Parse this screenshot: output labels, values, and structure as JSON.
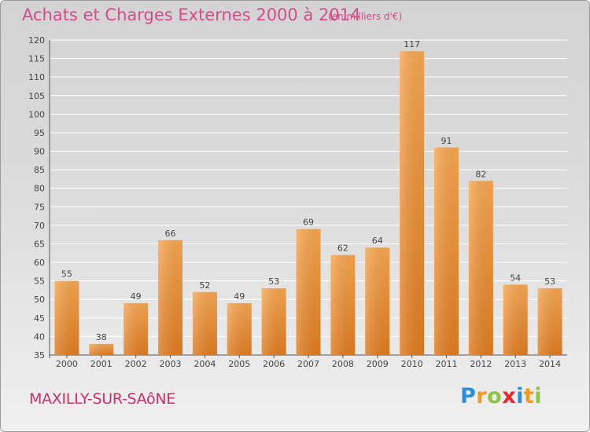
{
  "chart_data": {
    "type": "bar",
    "title": "Achats et Charges Externes 2000 à 2014",
    "subtitle": "(en milliers d'€)",
    "categories": [
      "2000",
      "2001",
      "2002",
      "2003",
      "2004",
      "2005",
      "2006",
      "2007",
      "2008",
      "2009",
      "2010",
      "2011",
      "2012",
      "2013",
      "2014"
    ],
    "values": [
      55,
      38,
      49,
      66,
      52,
      49,
      53,
      69,
      62,
      64,
      117,
      91,
      82,
      54,
      53
    ],
    "ylim": [
      35,
      120
    ],
    "yticks": [
      35,
      40,
      45,
      50,
      55,
      60,
      65,
      70,
      75,
      80,
      85,
      90,
      95,
      100,
      105,
      110,
      115,
      120
    ],
    "grid": true,
    "colors": {
      "bar_light": "#f7a751",
      "bar_dark": "#e07c22",
      "title": "#d14d8a",
      "grid": "#ffffff"
    }
  },
  "commune": "MAXILLY-SUR-SAôNE",
  "logo": {
    "letters": [
      "P",
      "r",
      "o",
      "x",
      "i",
      "t",
      "i"
    ],
    "colors": [
      "#2f8fd6",
      "#f29a1e",
      "#8cc63f",
      "#e8262b",
      "#2f8fd6",
      "#f29a1e",
      "#8cc63f"
    ]
  }
}
